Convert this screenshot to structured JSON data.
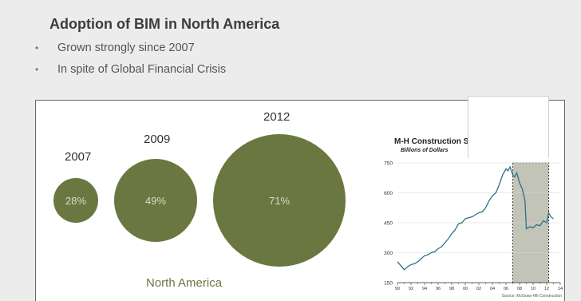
{
  "slide": {
    "title": "Adoption of BIM in North America",
    "bullets": [
      "Grown strongly since 2007",
      "In spite of Global Financial Crisis"
    ]
  },
  "chart_data": [
    {
      "type": "bubble",
      "title": "",
      "categories": [
        "2007",
        "2009",
        "2012"
      ],
      "values": [
        28,
        49,
        71
      ],
      "value_labels": [
        "28%",
        "49%",
        "71%"
      ],
      "xlabel": "North America",
      "color": "#6b7740"
    },
    {
      "type": "line",
      "title": "M-H Construction Starts",
      "subtitle": "Billions of Dollars",
      "ylim": [
        150,
        750
      ],
      "yticks": [
        150,
        300,
        450,
        600,
        750
      ],
      "xticks": [
        "90",
        "92",
        "94",
        "96",
        "98",
        "00",
        "02",
        "04",
        "06",
        "08",
        "10",
        "12",
        "14"
      ],
      "xlim": [
        1990,
        2014
      ],
      "grid": true,
      "shaded_region": [
        2007,
        2012.3
      ],
      "source": "Source: McGraw-Hill Construction",
      "series": [
        {
          "x": [
            1990,
            1990.5,
            1991,
            1991.5,
            1992,
            1992.5,
            1993,
            1993.5,
            1994,
            1994.5,
            1995,
            1995.5,
            1996,
            1996.5,
            1997,
            1997.5,
            1998,
            1998.5,
            1999,
            1999.5,
            2000,
            2000.5,
            2001,
            2001.5,
            2002,
            2002.5,
            2003,
            2003.5,
            2004,
            2004.5,
            2005,
            2005.5,
            2006,
            2006.3,
            2006.6,
            2007,
            2007.3,
            2007.6,
            2008,
            2008.4,
            2008.8,
            2009,
            2009.5,
            2010,
            2010.5,
            2011,
            2011.5,
            2012,
            2012.3,
            2012.6,
            2013
          ],
          "y": [
            255,
            235,
            215,
            230,
            240,
            245,
            255,
            270,
            285,
            290,
            300,
            305,
            320,
            330,
            350,
            370,
            395,
            415,
            445,
            450,
            470,
            475,
            480,
            490,
            500,
            505,
            525,
            560,
            585,
            600,
            640,
            690,
            720,
            710,
            730,
            690,
            680,
            700,
            650,
            620,
            560,
            420,
            430,
            425,
            440,
            435,
            460,
            450,
            500,
            480,
            470
          ],
          "color": "#2f6f87"
        }
      ]
    }
  ]
}
